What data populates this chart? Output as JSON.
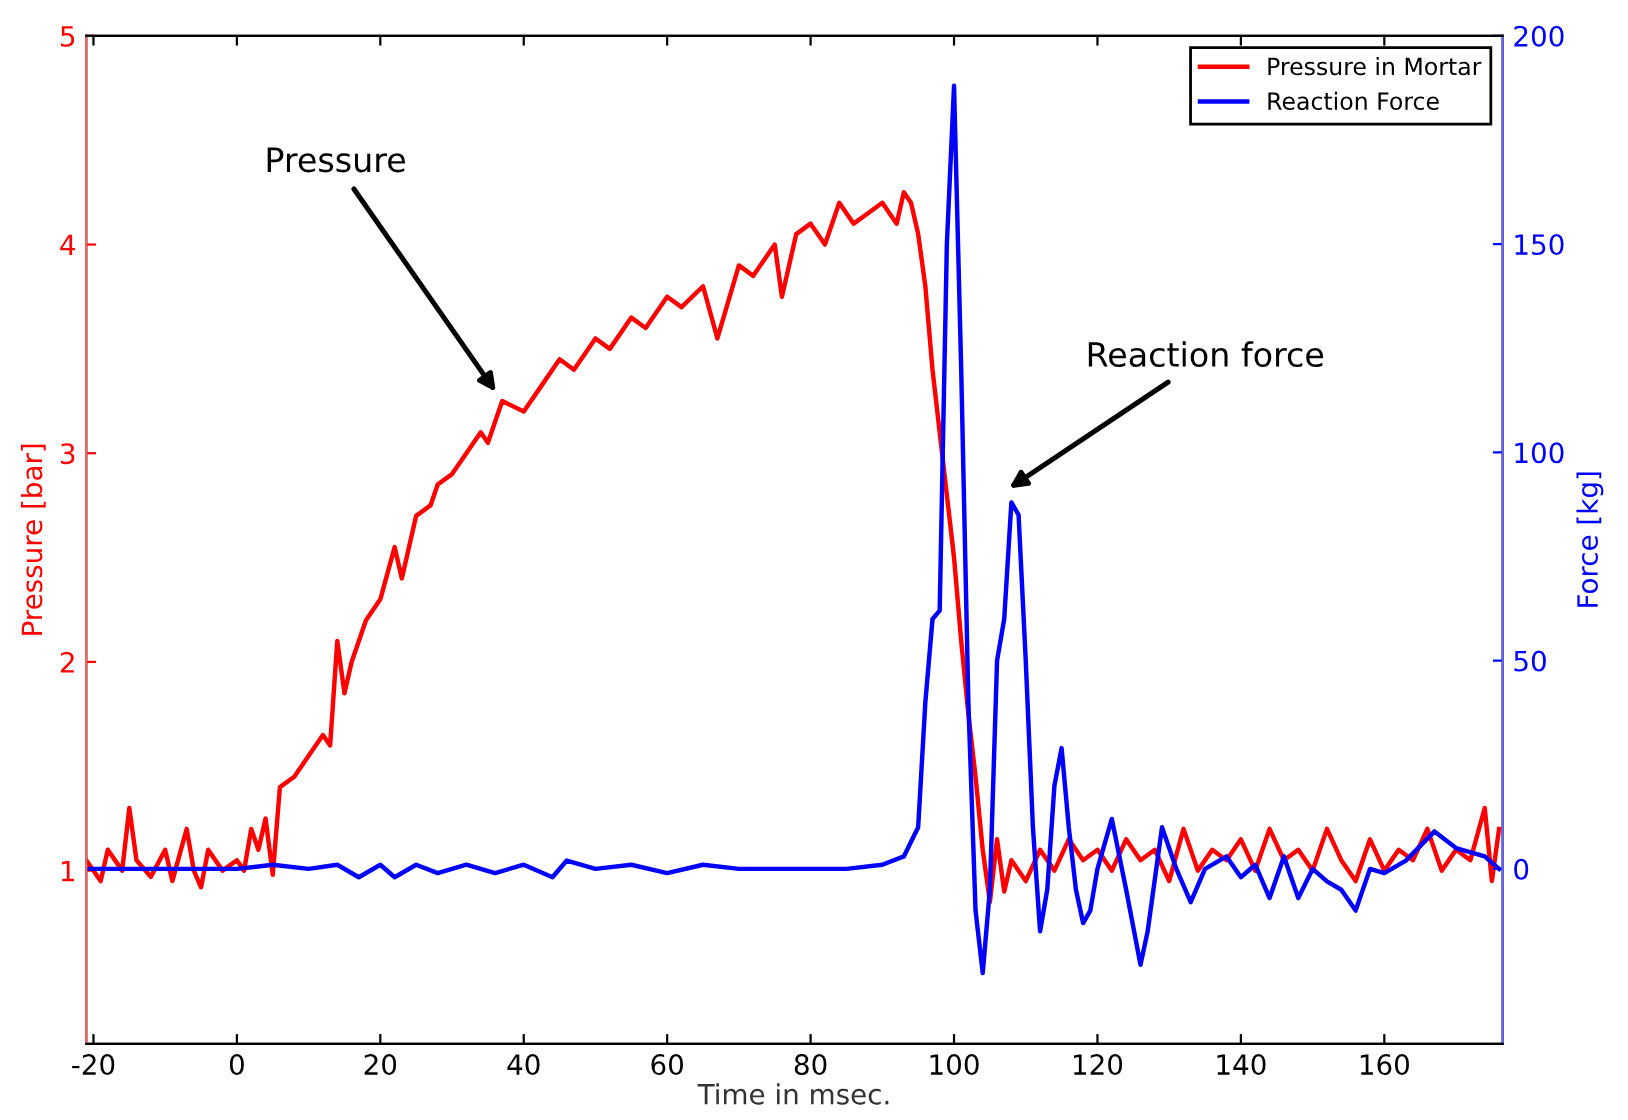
{
  "chart_data": {
    "type": "line",
    "xlabel": "Time in msec.",
    "ylabel": "Pressure [bar]",
    "y2label": "Force [kg]",
    "xlim": [
      -21,
      176.5
    ],
    "xticks": [
      -20,
      0,
      20,
      40,
      60,
      80,
      100,
      120,
      140,
      160
    ],
    "ylim": [
      0.17,
      5
    ],
    "yticks": [
      1,
      2,
      3,
      4,
      5
    ],
    "y2lim": [
      -42,
      200
    ],
    "y2ticks": [
      0,
      50,
      100,
      150,
      200
    ],
    "legend": "top right",
    "grid": false,
    "series": [
      {
        "name": "Pressure in Mortar",
        "color": "#ff0000",
        "x": [
          -21,
          -19,
          -18,
          -16,
          -15,
          -14,
          -12,
          -10,
          -9,
          -7,
          -6,
          -5,
          -4,
          -2,
          0,
          1,
          2,
          3,
          4,
          5,
          6,
          8,
          10,
          12,
          13,
          14,
          15,
          16,
          18,
          20,
          22,
          23,
          25,
          27,
          28,
          30,
          32,
          34,
          35,
          37,
          40,
          42,
          45,
          47,
          50,
          52,
          55,
          57,
          60,
          62,
          65,
          67,
          70,
          72,
          75,
          76,
          78,
          80,
          82,
          84,
          86,
          88,
          90,
          92,
          93,
          94,
          95,
          96,
          97,
          98,
          99,
          100,
          101,
          102,
          103,
          104,
          105,
          106,
          107,
          108,
          110,
          112,
          114,
          116,
          118,
          120,
          122,
          124,
          126,
          128,
          130,
          132,
          134,
          136,
          138,
          140,
          142,
          144,
          146,
          148,
          150,
          152,
          154,
          156,
          158,
          160,
          162,
          164,
          166,
          168,
          170,
          172,
          174,
          175,
          176
        ],
        "values": [
          1.05,
          0.95,
          1.1,
          1.0,
          1.3,
          1.05,
          0.97,
          1.1,
          0.95,
          1.2,
          1.0,
          0.92,
          1.1,
          1.0,
          1.05,
          1.0,
          1.2,
          1.1,
          1.25,
          0.98,
          1.4,
          1.45,
          1.55,
          1.65,
          1.6,
          2.1,
          1.85,
          2.0,
          2.2,
          2.3,
          2.55,
          2.4,
          2.7,
          2.75,
          2.85,
          2.9,
          3.0,
          3.1,
          3.05,
          3.25,
          3.2,
          3.3,
          3.45,
          3.4,
          3.55,
          3.5,
          3.65,
          3.6,
          3.75,
          3.7,
          3.8,
          3.55,
          3.9,
          3.85,
          4.0,
          3.75,
          4.05,
          4.1,
          4.0,
          4.2,
          4.1,
          4.15,
          4.2,
          4.1,
          4.25,
          4.2,
          4.05,
          3.8,
          3.4,
          3.1,
          2.8,
          2.5,
          2.1,
          1.75,
          1.45,
          1.1,
          0.85,
          1.15,
          0.9,
          1.05,
          0.95,
          1.1,
          1.0,
          1.15,
          1.05,
          1.1,
          1.0,
          1.15,
          1.05,
          1.1,
          0.95,
          1.2,
          1.0,
          1.1,
          1.05,
          1.15,
          1.0,
          1.2,
          1.05,
          1.1,
          1.0,
          1.2,
          1.05,
          0.95,
          1.15,
          1.0,
          1.1,
          1.05,
          1.2,
          1.0,
          1.1,
          1.05,
          1.3,
          0.95,
          1.2
        ]
      },
      {
        "name": "Reaction Force",
        "color": "#0000ff",
        "axis": "y2",
        "x": [
          -21,
          -15,
          -10,
          -5,
          0,
          5,
          10,
          14,
          17,
          20,
          22,
          25,
          28,
          32,
          36,
          40,
          44,
          46,
          50,
          55,
          60,
          65,
          70,
          75,
          80,
          85,
          90,
          93,
          95,
          96,
          97,
          98,
          99,
          100,
          101,
          102,
          103,
          104,
          105,
          106,
          107,
          108,
          109,
          110,
          111,
          112,
          113,
          114,
          115,
          116,
          117,
          118,
          119,
          120,
          122,
          124,
          126,
          127,
          129,
          131,
          133,
          135,
          138,
          140,
          142,
          144,
          146,
          148,
          150,
          152,
          154,
          156,
          158,
          160,
          163,
          167,
          170,
          174,
          176
        ],
        "values": [
          0,
          0,
          0,
          0,
          0,
          1,
          0,
          1,
          -2,
          1,
          -2,
          1,
          -1,
          1,
          -1,
          1,
          -2,
          2,
          0,
          1,
          -1,
          1,
          0,
          0,
          0,
          0,
          1,
          3,
          10,
          40,
          60,
          62,
          150,
          188,
          120,
          40,
          -10,
          -25,
          -5,
          50,
          60,
          88,
          85,
          50,
          10,
          -15,
          -5,
          20,
          29,
          10,
          -5,
          -13,
          -10,
          0,
          12,
          -5,
          -23,
          -15,
          10,
          0,
          -8,
          0,
          3,
          -2,
          1,
          -7,
          3,
          -7,
          0,
          -3,
          -5,
          -10,
          0,
          -1,
          2,
          9,
          5,
          3,
          0
        ]
      }
    ],
    "annotations": [
      {
        "text": "Pressure",
        "x": 37,
        "y": 3.25
      },
      "Reaction force"
    ]
  }
}
